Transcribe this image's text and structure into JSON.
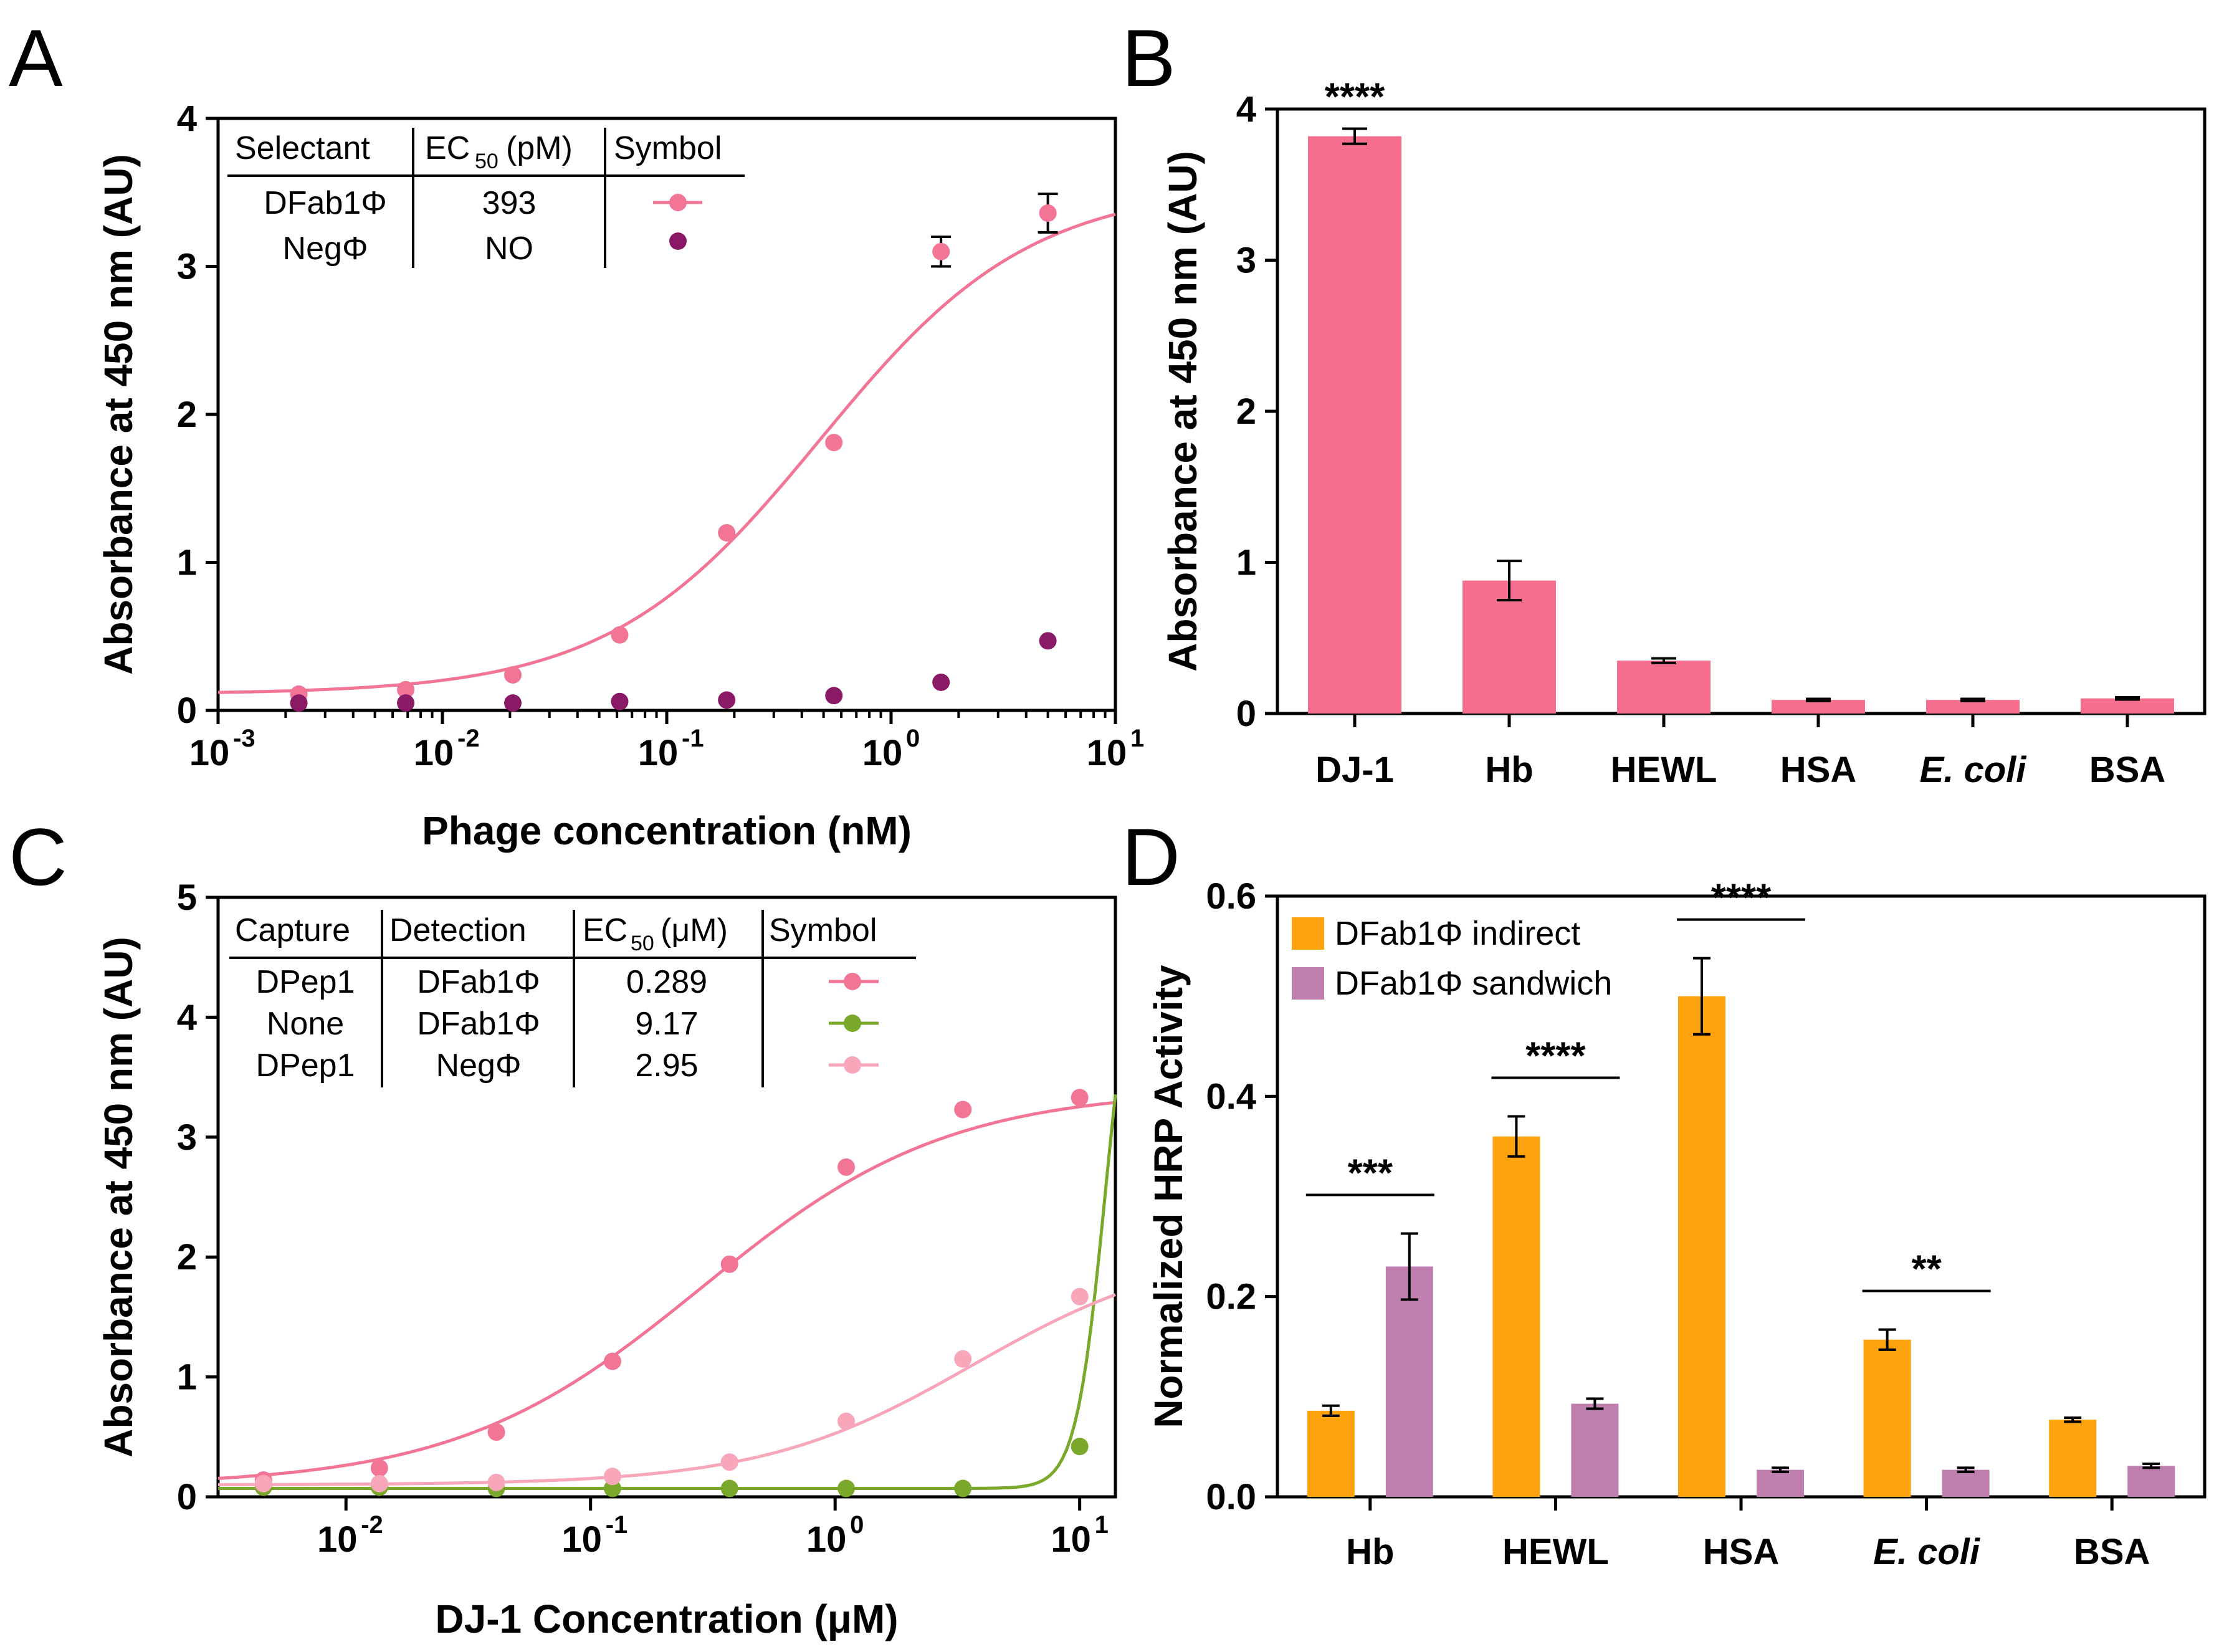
{
  "colors": {
    "pink": "#f27596",
    "purple": "#8b1a66",
    "olive": "#7aa82a",
    "lightpink": "#f7a7b9",
    "orange": "#fea20d",
    "mauve": "#be7fae",
    "barpink": "#f66e8e"
  },
  "chart_data": [
    {
      "panel": "A",
      "type": "scatter",
      "xscale": "log",
      "xlim": [
        0.001,
        10
      ],
      "ylim": [
        0,
        4
      ],
      "xlabel": "Phage concentration (nM)",
      "ylabel": "Absorbance at 450 nm (AU)",
      "xticks": [
        {
          "base": "10",
          "exp": "-3",
          "value": 0.001
        },
        {
          "base": "10",
          "exp": "-2",
          "value": 0.01
        },
        {
          "base": "10",
          "exp": "-1",
          "value": 0.1
        },
        {
          "base": "10",
          "exp": "0",
          "value": 1
        },
        {
          "base": "10",
          "exp": "1",
          "value": 10
        }
      ],
      "yticks": [
        "0",
        "1",
        "2",
        "3",
        "4"
      ],
      "table": {
        "headers": [
          "Selectant",
          "EC",
          "50",
          "(pM)",
          "Symbol"
        ],
        "rows": [
          {
            "name": "DFab1Φ",
            "ec50": "393"
          },
          {
            "name": "NegΦ",
            "ec50": "NO"
          }
        ]
      },
      "series": [
        {
          "name": "DFab1Φ",
          "x": [
            0.00229,
            0.00686,
            0.0206,
            0.0617,
            0.185,
            0.556,
            1.67,
            5.0
          ],
          "y": [
            0.11,
            0.14,
            0.24,
            0.51,
            1.2,
            1.81,
            3.1,
            3.36
          ],
          "err": [
            0.01,
            0.01,
            0.01,
            0.02,
            0.02,
            0.02,
            0.1,
            0.13
          ],
          "fit": {
            "bottom": 0.11,
            "top": 3.55,
            "ec50": 0.393,
            "hill": 1.1
          }
        },
        {
          "name": "NegΦ",
          "x": [
            0.00229,
            0.00686,
            0.0206,
            0.0617,
            0.185,
            0.556,
            1.67,
            5.0
          ],
          "y": [
            0.05,
            0.05,
            0.05,
            0.06,
            0.07,
            0.1,
            0.19,
            0.47
          ]
        }
      ]
    },
    {
      "panel": "B",
      "type": "bar",
      "ylim": [
        0,
        4
      ],
      "ylabel": "Absorbance at 450 nm (AU)",
      "yticks": [
        "0",
        "1",
        "2",
        "3",
        "4"
      ],
      "categories": [
        "DJ-1",
        "Hb",
        "HEWL",
        "HSA",
        "E. coli",
        "BSA"
      ],
      "values": [
        3.82,
        0.88,
        0.35,
        0.09,
        0.09,
        0.1
      ],
      "errors": [
        0.05,
        0.13,
        0.015,
        0.007,
        0.007,
        0.007
      ],
      "annotation": "****"
    },
    {
      "panel": "C",
      "type": "line",
      "xscale": "log",
      "xlim": [
        0.003,
        14
      ],
      "ylim": [
        0,
        5
      ],
      "xlabel": "DJ-1 Concentration (μM)",
      "ylabel": "Absorbance at 450 nm (AU)",
      "xticks": [
        {
          "base": "10",
          "exp": "-2",
          "value": 0.01
        },
        {
          "base": "10",
          "exp": "-1",
          "value": 0.1
        },
        {
          "base": "10",
          "exp": "0",
          "value": 1
        },
        {
          "base": "10",
          "exp": "1",
          "value": 10
        }
      ],
      "yticks": [
        "0",
        "1",
        "2",
        "3",
        "4",
        "5"
      ],
      "table": {
        "headers": [
          "Capture",
          "Detection",
          "EC",
          "50",
          "(μM)",
          "Symbol"
        ],
        "rows": [
          {
            "capture": "DPep1",
            "detection": "DFab1Φ",
            "ec50": "0.289"
          },
          {
            "capture": "None",
            "detection": "DFab1Φ",
            "ec50": "9.17"
          },
          {
            "capture": "DPep1",
            "detection": "NegΦ",
            "ec50": "2.95"
          }
        ]
      },
      "series": [
        {
          "name": "DPep1 / DFab1Φ",
          "x": [
            0.0046,
            0.0137,
            0.0412,
            0.123,
            0.37,
            1.11,
            3.33,
            10
          ],
          "y": [
            0.14,
            0.24,
            0.54,
            1.13,
            1.94,
            2.75,
            3.23,
            3.33
          ],
          "fit": {
            "bottom": 0.09,
            "top": 3.4,
            "ec50": 0.289,
            "hill": 0.95
          }
        },
        {
          "name": "None / DFab1Φ",
          "x": [
            0.0046,
            0.0137,
            0.0412,
            0.123,
            0.37,
            1.11,
            3.33,
            10
          ],
          "y": [
            0.08,
            0.08,
            0.07,
            0.07,
            0.07,
            0.07,
            0.07,
            0.42
          ],
          "fit": {
            "bottom": 0.07,
            "top": 5.0,
            "ec50": 9.17,
            "hill": 8
          }
        },
        {
          "name": "DPep1 / NegΦ",
          "x": [
            0.0046,
            0.0137,
            0.0412,
            0.123,
            0.37,
            1.11,
            3.33,
            10
          ],
          "y": [
            0.11,
            0.11,
            0.12,
            0.17,
            0.29,
            0.63,
            1.15,
            1.67
          ],
          "fit": {
            "bottom": 0.1,
            "top": 2.1,
            "ec50": 2.95,
            "hill": 1.1
          }
        }
      ]
    },
    {
      "panel": "D",
      "type": "bar",
      "ylim": [
        0,
        0.6
      ],
      "ylabel": "Normalized HRP Activity",
      "yticks": [
        "0.0",
        "0.2",
        "0.4",
        "0.6"
      ],
      "categories": [
        "Hb",
        "HEWL",
        "HSA",
        "E. coli",
        "BSA"
      ],
      "legend": [
        "DFab1Φ indirect",
        "DFab1Φ sandwich"
      ],
      "series": [
        {
          "name": "DFab1Φ indirect",
          "values": [
            0.086,
            0.36,
            0.5,
            0.157,
            0.077
          ],
          "errors": [
            0.005,
            0.02,
            0.038,
            0.01,
            0.002
          ]
        },
        {
          "name": "DFab1Φ sandwich",
          "values": [
            0.23,
            0.093,
            0.027,
            0.027,
            0.031
          ],
          "errors": [
            0.033,
            0.005,
            0.002,
            0.002,
            0.002
          ]
        }
      ],
      "significance": [
        "***",
        "****",
        "****",
        "**",
        ""
      ]
    }
  ]
}
